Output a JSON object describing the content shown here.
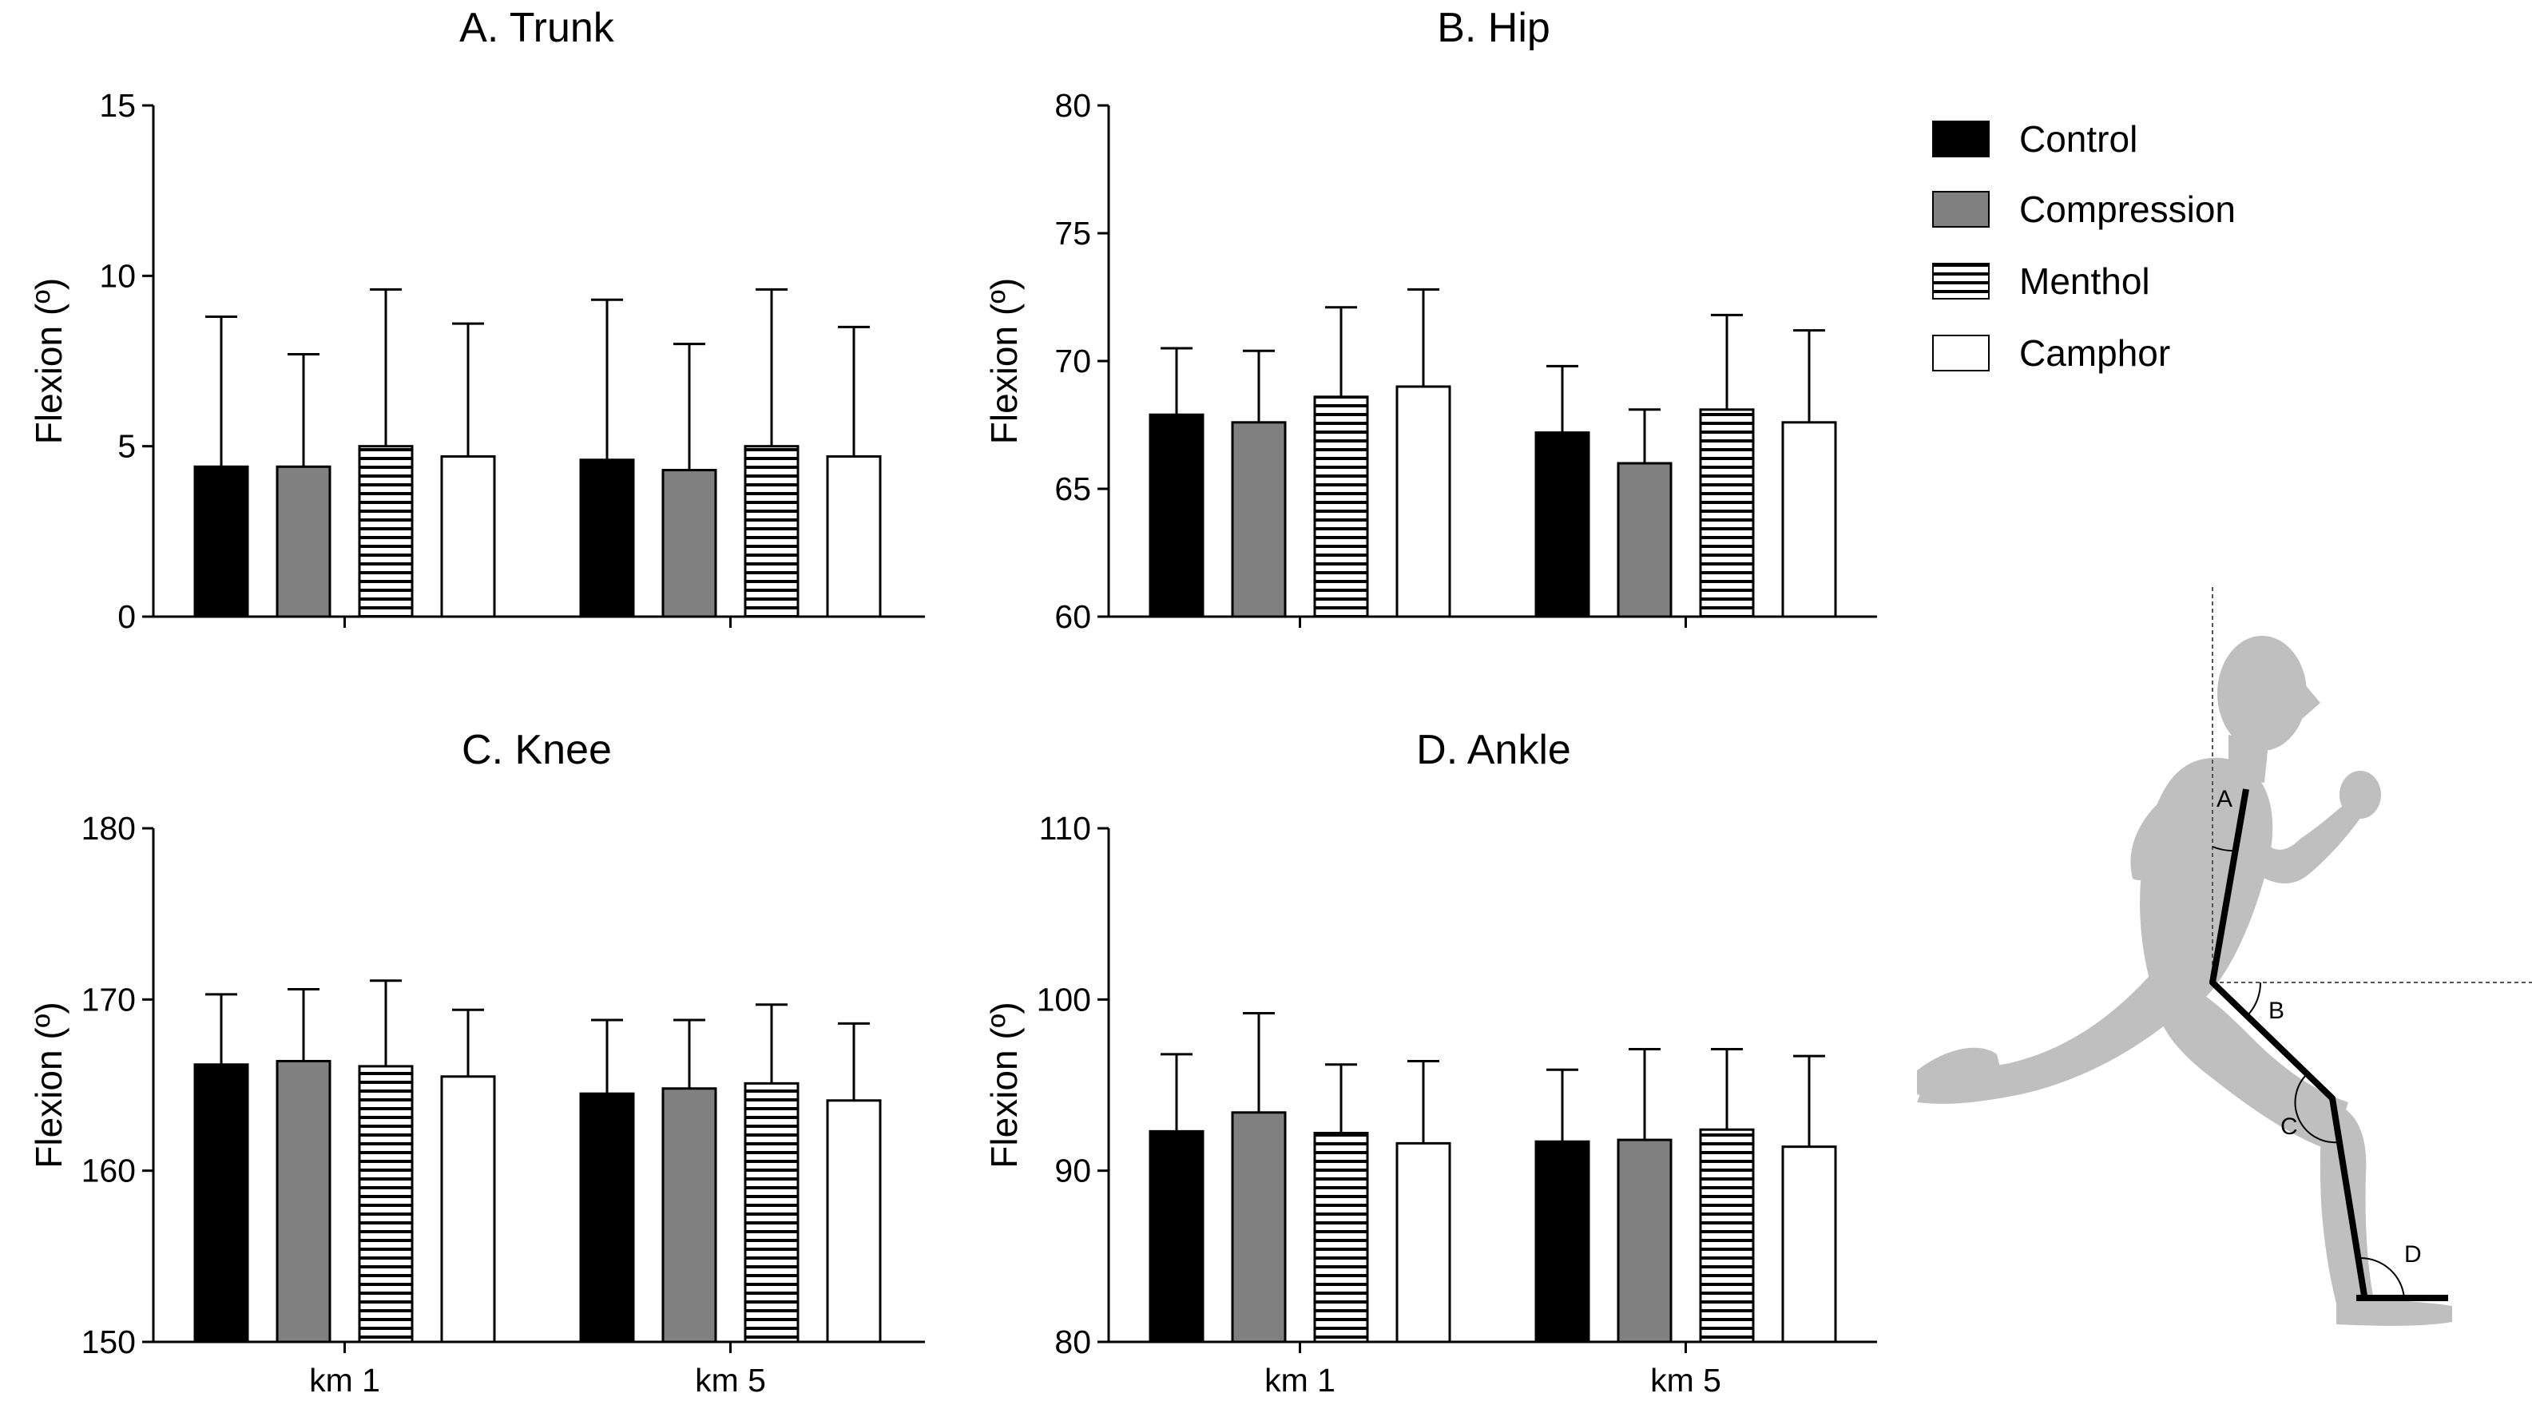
{
  "legend": [
    {
      "name": "Control",
      "pattern": "solid-black"
    },
    {
      "name": "Compression",
      "pattern": "solid-gray"
    },
    {
      "name": "Menthol",
      "pattern": "horizontal-stripes"
    },
    {
      "name": "Camphor",
      "pattern": "white"
    }
  ],
  "colors": {
    "control": "#000000",
    "compression": "#808080",
    "menthol_stripe": "#000000",
    "camphor": "#ffffff",
    "silhouette": "#bfbfbf"
  },
  "chart_data": [
    {
      "type": "bar",
      "title": "A. Trunk",
      "ylabel": "Flexion (º)",
      "categories": [
        "km 1",
        "km 5"
      ],
      "show_xticklabels": false,
      "ylim": [
        0,
        15
      ],
      "yticks": [
        0,
        5,
        10,
        15
      ],
      "series": [
        {
          "name": "Control",
          "values": [
            4.4,
            4.6
          ],
          "errors": [
            4.4,
            4.7
          ]
        },
        {
          "name": "Compression",
          "values": [
            4.4,
            4.3
          ],
          "errors": [
            3.3,
            3.7
          ]
        },
        {
          "name": "Menthol",
          "values": [
            5.0,
            5.0
          ],
          "errors": [
            4.6,
            4.6
          ]
        },
        {
          "name": "Camphor",
          "values": [
            4.7,
            4.7
          ],
          "errors": [
            3.9,
            3.8
          ]
        }
      ]
    },
    {
      "type": "bar",
      "title": "B. Hip",
      "ylabel": "Flexion (º)",
      "categories": [
        "km 1",
        "km 5"
      ],
      "show_xticklabels": false,
      "ylim": [
        60,
        80
      ],
      "yticks": [
        60,
        65,
        70,
        75,
        80
      ],
      "series": [
        {
          "name": "Control",
          "values": [
            67.9,
            67.2
          ],
          "errors": [
            2.6,
            2.6
          ]
        },
        {
          "name": "Compression",
          "values": [
            67.6,
            66.0
          ],
          "errors": [
            2.8,
            2.1
          ]
        },
        {
          "name": "Menthol",
          "values": [
            68.6,
            68.1
          ],
          "errors": [
            3.5,
            3.7
          ]
        },
        {
          "name": "Camphor",
          "values": [
            69.0,
            67.6
          ],
          "errors": [
            3.8,
            3.6
          ]
        }
      ]
    },
    {
      "type": "bar",
      "title": "C. Knee",
      "ylabel": "Flexion (º)",
      "categories": [
        "km 1",
        "km 5"
      ],
      "show_xticklabels": true,
      "ylim": [
        150,
        180
      ],
      "yticks": [
        150,
        160,
        170,
        180
      ],
      "series": [
        {
          "name": "Control",
          "values": [
            166.2,
            164.5
          ],
          "errors": [
            4.1,
            4.3
          ]
        },
        {
          "name": "Compression",
          "values": [
            166.4,
            164.8
          ],
          "errors": [
            4.2,
            4.0
          ]
        },
        {
          "name": "Menthol",
          "values": [
            166.1,
            165.1
          ],
          "errors": [
            5.0,
            4.6
          ]
        },
        {
          "name": "Camphor",
          "values": [
            165.5,
            164.1
          ],
          "errors": [
            3.9,
            4.5
          ]
        }
      ]
    },
    {
      "type": "bar",
      "title": "D. Ankle",
      "ylabel": "Flexion (º)",
      "categories": [
        "km 1",
        "km 5"
      ],
      "show_xticklabels": true,
      "ylim": [
        80,
        110
      ],
      "yticks": [
        80,
        90,
        100,
        110
      ],
      "series": [
        {
          "name": "Control",
          "values": [
            92.3,
            91.7
          ],
          "errors": [
            4.5,
            4.2
          ]
        },
        {
          "name": "Compression",
          "values": [
            93.4,
            91.8
          ],
          "errors": [
            5.8,
            5.3
          ]
        },
        {
          "name": "Menthol",
          "values": [
            92.2,
            92.4
          ],
          "errors": [
            4.0,
            4.7
          ]
        },
        {
          "name": "Camphor",
          "values": [
            91.6,
            91.4
          ],
          "errors": [
            4.8,
            5.3
          ]
        }
      ]
    }
  ],
  "figure": {
    "angle_labels": [
      "A",
      "B",
      "C",
      "D"
    ]
  }
}
